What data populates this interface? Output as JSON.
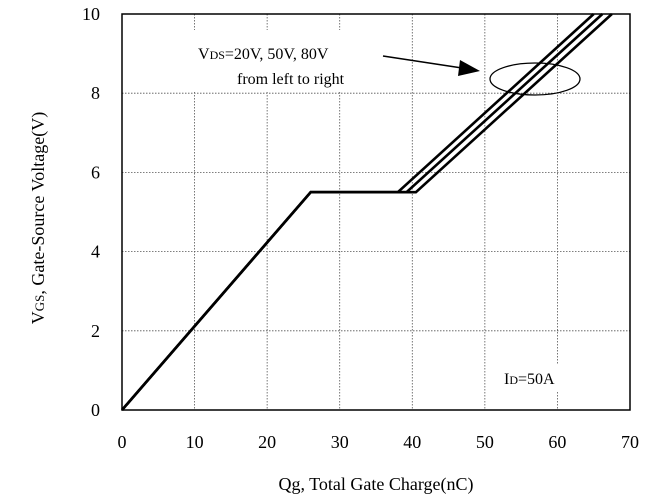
{
  "chart_data": {
    "type": "line",
    "title": "",
    "xlabel": "Qg, Total Gate Charge(nC)",
    "ylabel_prefix": "V",
    "ylabel_sub": "GS",
    "ylabel_rest": ", Gate-Source Voltage(V)",
    "xlim": [
      0,
      70
    ],
    "ylim": [
      0,
      10
    ],
    "x_ticks": [
      "0",
      "10",
      "20",
      "30",
      "40",
      "50",
      "60",
      "70"
    ],
    "y_ticks": [
      "0",
      "2",
      "4",
      "6",
      "8",
      "10"
    ],
    "grid": true,
    "series": [
      {
        "x": [
          0,
          26,
          38,
          65
        ],
        "y": [
          0,
          5.5,
          5.5,
          10
        ]
      },
      {
        "x": [
          0,
          26,
          39.2,
          66.2
        ],
        "y": [
          0,
          5.5,
          5.5,
          10
        ]
      },
      {
        "x": [
          0,
          26,
          40.5,
          67.5
        ],
        "y": [
          0,
          5.5,
          5.5,
          10
        ]
      }
    ],
    "annotations": {
      "vds_prefix": "V",
      "vds_sub": "DS",
      "vds_rest": "=20V, 50V, 80V",
      "vds_line2": "from left to right",
      "id_prefix": "I",
      "id_sub": "D",
      "id_rest": "=50A"
    }
  }
}
